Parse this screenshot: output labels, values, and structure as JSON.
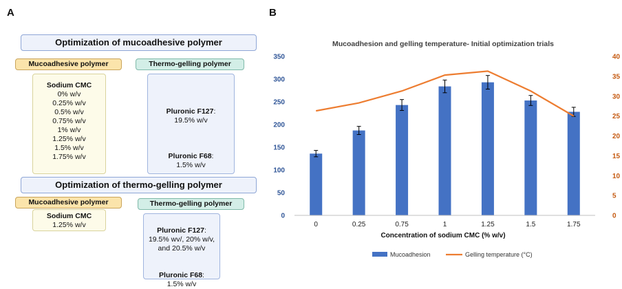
{
  "panel_a": {
    "letter": "A",
    "section1": {
      "title": "Optimization of mucoadhesive polymer",
      "muco_tag": "Mucoadhesive polymer",
      "thermo_tag": "Thermo-gelling polymer",
      "muco_title": "Sodium CMC",
      "muco_list": [
        "0% w/v",
        "0.25% w/v",
        "0.5% w/v",
        "0.75% w/v",
        "1% w/v",
        "1.25% w/v",
        "1.5% w/v",
        "1.75% w/v"
      ],
      "thermo_f127_label": "Pluronic F127",
      "thermo_f127_value": ":\n19.5% w/v",
      "thermo_f68_label": "Pluronic F68",
      "thermo_f68_value": ":\n1.5% w/v"
    },
    "section2": {
      "title": "Optimization of thermo-gelling polymer",
      "muco_tag": "Mucoadhesive polymer",
      "thermo_tag": "Thermo-gelling polymer",
      "muco_title": "Sodium CMC",
      "muco_value": "1.25% w/v",
      "thermo_f127_label": "Pluronic F127",
      "thermo_f127_value": ":\n19.5% wv/, 20% w/v, and 20.5% w/v",
      "thermo_f68_label": "Pluronic F68",
      "thermo_f68_value": ":\n1.5% w/v"
    }
  },
  "panel_b": {
    "letter": "B"
  },
  "colors": {
    "bar": "#4472c4",
    "line": "#ed7d31",
    "right_axis": "#c55a11",
    "left_axis": "#2f5597"
  },
  "chart_data": {
    "type": "bar",
    "title": "Mucoadhesion and gelling temperature- Initial optimization trials",
    "xlabel": "Concentration of sodium CMC (% w/v)",
    "categories": [
      "0",
      "0.25",
      "0.75",
      "1",
      "1.25",
      "1.5",
      "1.75"
    ],
    "y_left": {
      "range": [
        0,
        350
      ],
      "ticks": [
        "0",
        "50",
        "100",
        "150",
        "200",
        "250",
        "300",
        "350"
      ]
    },
    "y_right": {
      "range": [
        0,
        40
      ],
      "ticks": [
        "0",
        "5",
        "10",
        "15",
        "20",
        "25",
        "30",
        "35",
        "40"
      ]
    },
    "grid": false,
    "legend_position": "bottom",
    "series": [
      {
        "name": "Mucoadhesion",
        "kind": "bar",
        "axis": "left",
        "values": [
          136,
          187,
          243,
          284,
          293,
          253,
          228
        ],
        "errors": [
          7,
          9,
          12,
          14,
          15,
          11,
          10
        ]
      },
      {
        "name": "Gelling temperature (°C)",
        "kind": "line",
        "axis": "right",
        "values": [
          26.3,
          28.3,
          31.3,
          35.3,
          36.3,
          31.3,
          25.0
        ]
      }
    ]
  }
}
